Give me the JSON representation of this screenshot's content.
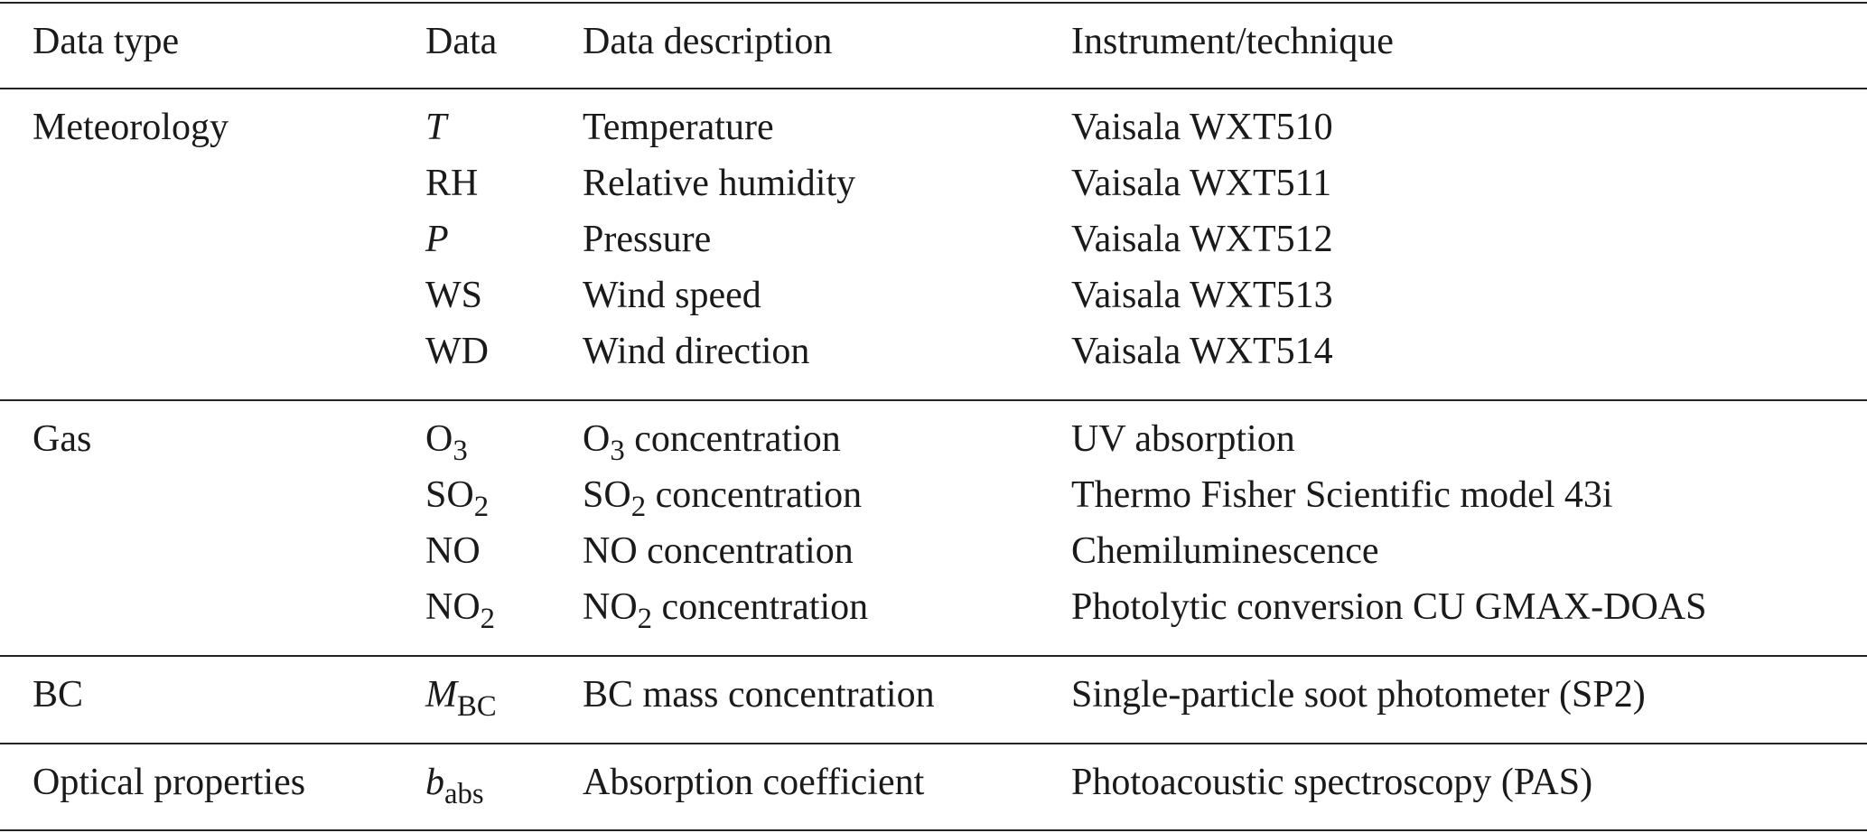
{
  "table": {
    "header": [
      "Data type",
      "Data",
      "Data description",
      "Instrument/technique"
    ],
    "groups": [
      {
        "data_type": "Meteorology",
        "rows": [
          {
            "data": [
              {
                "text": "T",
                "style": "italic"
              }
            ],
            "description": "Temperature",
            "instrument": "Vaisala WXT510"
          },
          {
            "data": "RH",
            "description": "Relative humidity",
            "instrument": "Vaisala WXT511"
          },
          {
            "data": [
              {
                "text": "P",
                "style": "italic"
              }
            ],
            "description": "Pressure",
            "instrument": "Vaisala WXT512"
          },
          {
            "data": "WS",
            "description": "Wind speed",
            "instrument": "Vaisala WXT513"
          },
          {
            "data": "WD",
            "description": "Wind direction",
            "instrument": "Vaisala WXT514"
          }
        ]
      },
      {
        "data_type": "Gas",
        "rows": [
          {
            "data": [
              {
                "text": "O"
              },
              {
                "text": "3",
                "style": "sub"
              }
            ],
            "description": [
              {
                "text": "O"
              },
              {
                "text": "3",
                "style": "sub"
              },
              {
                "text": " concentration"
              }
            ],
            "instrument": "UV absorption"
          },
          {
            "data": [
              {
                "text": "SO"
              },
              {
                "text": "2",
                "style": "sub"
              }
            ],
            "description": [
              {
                "text": "SO"
              },
              {
                "text": "2",
                "style": "sub"
              },
              {
                "text": " concentration"
              }
            ],
            "instrument": "Thermo Fisher Scientific model 43i"
          },
          {
            "data": "NO",
            "description": "NO concentration",
            "instrument": "Chemiluminescence"
          },
          {
            "data": [
              {
                "text": "NO"
              },
              {
                "text": "2",
                "style": "sub"
              }
            ],
            "description": [
              {
                "text": "NO"
              },
              {
                "text": "2",
                "style": "sub"
              },
              {
                "text": " concentration"
              }
            ],
            "instrument": "Photolytic conversion CU GMAX-DOAS"
          }
        ]
      },
      {
        "data_type": "BC",
        "rows": [
          {
            "data": [
              {
                "text": "M",
                "style": "italic"
              },
              {
                "text": "BC",
                "style": "sub"
              }
            ],
            "description": "BC mass concentration",
            "instrument": "Single-particle soot photometer (SP2)"
          }
        ]
      },
      {
        "data_type": "Optical properties",
        "rows": [
          {
            "data": [
              {
                "text": "b",
                "style": "italic"
              },
              {
                "text": "abs",
                "style": "sub"
              }
            ],
            "description": "Absorption coefficient",
            "instrument": "Photoacoustic spectroscopy (PAS)"
          }
        ]
      }
    ]
  }
}
